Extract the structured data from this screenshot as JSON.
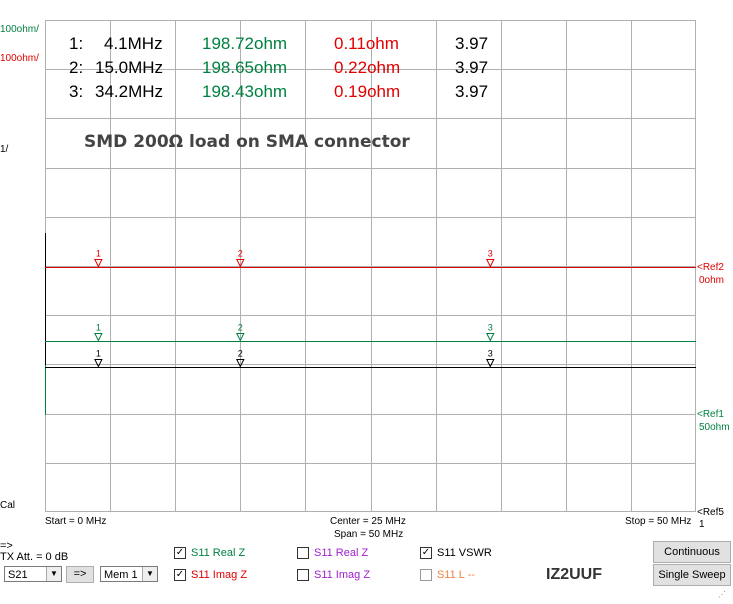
{
  "colors": {
    "green": "#008040",
    "red": "#e00000",
    "black": "#000000",
    "purple": "#a020d0",
    "orange": "#f08040",
    "grid": "#b0b0b0"
  },
  "left_scale": {
    "green": "100ohm/",
    "red": "100ohm/",
    "black": "1/",
    "cal": "Cal"
  },
  "markers": [
    {
      "num": "1:",
      "freq": "4.1MHz",
      "real": "198.72ohm",
      "imag": "0.11ohm",
      "vswr": "3.97"
    },
    {
      "num": "2:",
      "freq": "15.0MHz",
      "real": "198.65ohm",
      "imag": "0.22ohm",
      "vswr": "3.97"
    },
    {
      "num": "3:",
      "freq": "34.2MHz",
      "real": "198.43ohm",
      "imag": "0.19ohm",
      "vswr": "3.97"
    }
  ],
  "annotation": "SMD 200Ω load on SMA connector",
  "trace_markers": {
    "labels": [
      "1",
      "2",
      "3"
    ],
    "freqs_mhz": [
      4.1,
      15.0,
      34.2
    ]
  },
  "refs": {
    "ref2": "<Ref2",
    "ref2_val": "0ohm",
    "ref1": "<Ref1",
    "ref1_val": "50ohm",
    "ref5": "<Ref5",
    "ref5_num": "1"
  },
  "axis": {
    "start": "Start = 0 MHz",
    "center": "Center = 25 MHz",
    "span": "Span = 50 MHz",
    "stop": "Stop = 50 MHz"
  },
  "controls": {
    "arrow_label": "=>",
    "tx_att": "TX Att. = 0 dB",
    "port_select": "S21",
    "arrow_button": "=>",
    "mem_select": "Mem 1",
    "checks": [
      {
        "label": "S11  Real Z",
        "checked": true,
        "color": "#008040"
      },
      {
        "label": "S11  Imag Z",
        "checked": true,
        "color": "#e00000"
      },
      {
        "label": "S11  Real Z",
        "checked": false,
        "color": "#a020d0"
      },
      {
        "label": "S11  Imag Z",
        "checked": false,
        "color": "#a020d0"
      },
      {
        "label": "S11  VSWR",
        "checked": true,
        "color": "#000000"
      },
      {
        "label": "S11  L --",
        "checked": false,
        "color": "#f08040"
      }
    ],
    "callsign": "IZ2UUF",
    "continuous": "Continuous",
    "single_sweep": "Single Sweep"
  },
  "chart_data": {
    "type": "line",
    "x_range_mhz": [
      0,
      50
    ],
    "grid": true,
    "series": [
      {
        "name": "S11 Real Z",
        "color": "#008040",
        "values": [
          198.72,
          198.65,
          198.43
        ]
      },
      {
        "name": "S11 Imag Z",
        "color": "#e00000",
        "values": [
          0.11,
          0.22,
          0.19
        ]
      },
      {
        "name": "S11 VSWR",
        "color": "#000000",
        "values": [
          3.97,
          3.97,
          3.97
        ]
      }
    ],
    "x": [
      4.1,
      15.0,
      34.2
    ]
  }
}
